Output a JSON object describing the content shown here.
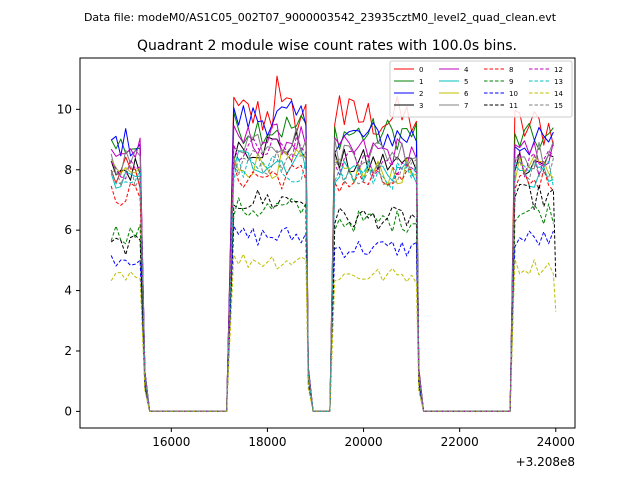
{
  "figure": {
    "suptitle": "Data file: modeM0/AS1C05_002T07_9000003542_23935cztM0_level2_quad_clean.evt",
    "title": "Quadrant 2 module wise count rates with 100.0s bins."
  },
  "chart_data": {
    "type": "line",
    "title": "Quadrant 2 module wise count rates with 100.0s bins.",
    "xlabel": "",
    "ylabel": "",
    "x_offset_label": "+3.208e8",
    "xlim": [
      14100,
      24400
    ],
    "ylim": [
      -0.55,
      11.7
    ],
    "x_ticks": [
      16000,
      18000,
      20000,
      22000,
      24000
    ],
    "x_tick_labels": [
      "16000",
      "18000",
      "20000",
      "22000",
      "24000"
    ],
    "y_ticks": [
      0,
      2,
      4,
      6,
      8,
      10
    ],
    "y_tick_labels": [
      "0",
      "2",
      "4",
      "6",
      "8",
      "10"
    ],
    "grid": false,
    "legend_position": "top-right",
    "segments": [
      {
        "start": 14750,
        "end": 15350,
        "ramp_to": 15450
      },
      {
        "start": 17300,
        "end": 18800,
        "ramp_from": 17300,
        "ramp_to": 18850
      },
      {
        "start": 19400,
        "end": 21100,
        "ramp_from": 19300,
        "ramp_to": 21150
      },
      {
        "start": 23150,
        "end": 24000,
        "ramp_from": 23050
      }
    ],
    "gap_value": 0,
    "series": [
      {
        "name": "0",
        "color": "#ff0000",
        "dash": "solid",
        "levels": [
          7.8,
          9.8,
          9.7,
          9.4
        ]
      },
      {
        "name": "1",
        "color": "#008000",
        "dash": "solid",
        "levels": [
          8.8,
          9.4,
          9.2,
          9.0
        ]
      },
      {
        "name": "2",
        "color": "#0000ff",
        "dash": "solid",
        "levels": [
          8.9,
          9.7,
          9.1,
          8.9
        ]
      },
      {
        "name": "3",
        "color": "#000000",
        "dash": "solid",
        "levels": [
          8.0,
          8.8,
          8.2,
          8.3
        ]
      },
      {
        "name": "4",
        "color": "#bf00bf",
        "dash": "solid",
        "levels": [
          8.6,
          9.0,
          8.6,
          8.5
        ]
      },
      {
        "name": "5",
        "color": "#00bfbf",
        "dash": "solid",
        "levels": [
          7.6,
          8.3,
          8.0,
          7.7
        ]
      },
      {
        "name": "6",
        "color": "#bfbf00",
        "dash": "solid",
        "levels": [
          7.9,
          8.2,
          7.9,
          8.0
        ]
      },
      {
        "name": "7",
        "color": "#808080",
        "dash": "solid",
        "levels": [
          8.3,
          9.0,
          8.6,
          8.5
        ]
      },
      {
        "name": "8",
        "color": "#ff0000",
        "dash": "dashed",
        "levels": [
          7.2,
          7.8,
          7.6,
          7.7
        ]
      },
      {
        "name": "9",
        "color": "#008000",
        "dash": "dashed",
        "levels": [
          5.9,
          6.7,
          6.3,
          6.6
        ]
      },
      {
        "name": "10",
        "color": "#0000ff",
        "dash": "dashed",
        "levels": [
          5.1,
          5.8,
          5.4,
          5.7
        ]
      },
      {
        "name": "11",
        "color": "#000000",
        "dash": "dashed",
        "levels": [
          5.5,
          7.0,
          6.4,
          7.1
        ]
      },
      {
        "name": "12",
        "color": "#bf00bf",
        "dash": "dashed",
        "levels": [
          7.9,
          8.6,
          8.2,
          8.2
        ]
      },
      {
        "name": "13",
        "color": "#00bfbf",
        "dash": "dashed",
        "levels": [
          7.7,
          8.0,
          7.8,
          7.9
        ]
      },
      {
        "name": "14",
        "color": "#bfbf00",
        "dash": "dashed",
        "levels": [
          4.6,
          5.0,
          4.5,
          4.8
        ]
      },
      {
        "name": "15",
        "color": "#808080",
        "dash": "dashed",
        "levels": [
          7.8,
          8.3,
          8.0,
          8.1
        ]
      }
    ]
  }
}
